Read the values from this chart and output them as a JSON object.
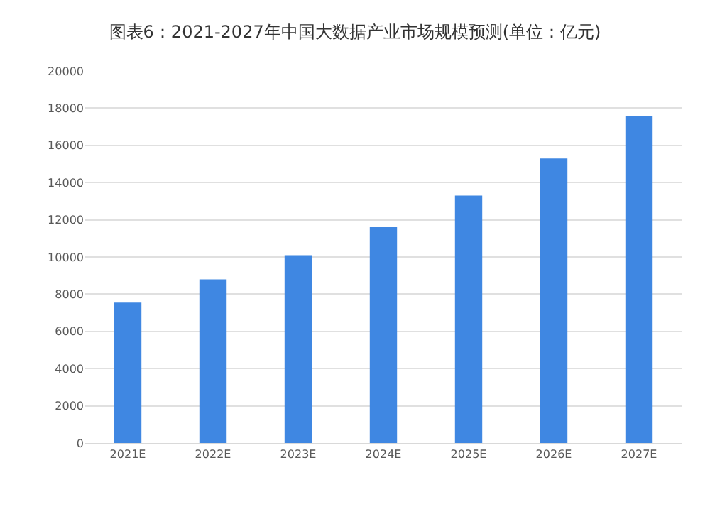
{
  "chart_data": {
    "type": "bar",
    "title": "图表6：2021-2027年中国大数据产业市场规模预测(单位：亿元)",
    "categories": [
      "2021E",
      "2022E",
      "2023E",
      "2024E",
      "2025E",
      "2026E",
      "2027E"
    ],
    "values": [
      7550,
      8800,
      10100,
      11600,
      13300,
      15300,
      17600
    ],
    "color": "#3f87e2",
    "ylim": [
      0,
      20000
    ],
    "yticks": [
      0,
      2000,
      4000,
      6000,
      8000,
      10000,
      12000,
      14000,
      16000,
      18000,
      20000
    ],
    "grid": "y"
  }
}
